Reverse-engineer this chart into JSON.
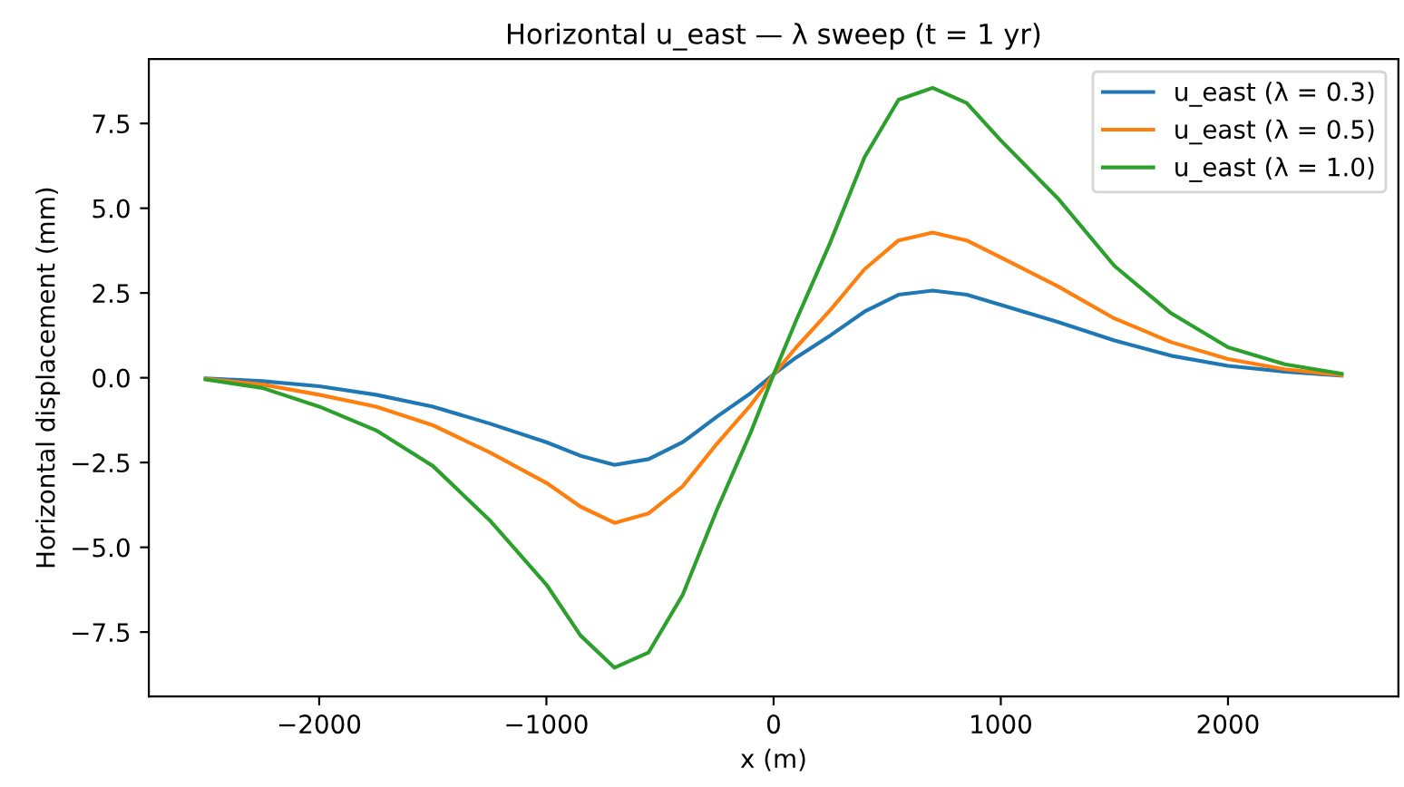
{
  "chart_data": {
    "type": "line",
    "title": "Horizontal u_east — λ sweep (t = 1 yr)",
    "xlabel": "x (m)",
    "ylabel": "Horizontal displacement (mm)",
    "x": [
      -2500,
      -2250,
      -2000,
      -1750,
      -1500,
      -1250,
      -1000,
      -850,
      -700,
      -550,
      -400,
      -250,
      -100,
      0,
      100,
      250,
      400,
      550,
      700,
      850,
      1000,
      1250,
      1500,
      1750,
      2000,
      2250,
      2500
    ],
    "series": [
      {
        "name": "u_east (λ = 0.3)",
        "color": "#1f77b4",
        "values": [
          -0.02,
          -0.1,
          -0.25,
          -0.5,
          -0.85,
          -1.35,
          -1.9,
          -2.3,
          -2.57,
          -2.4,
          -1.9,
          -1.15,
          -0.45,
          0.1,
          0.6,
          1.25,
          1.95,
          2.45,
          2.57,
          2.45,
          2.15,
          1.65,
          1.1,
          0.65,
          0.35,
          0.18,
          0.06
        ]
      },
      {
        "name": "u_east (λ = 0.5)",
        "color": "#ff7f0e",
        "values": [
          -0.03,
          -0.2,
          -0.5,
          -0.85,
          -1.4,
          -2.2,
          -3.1,
          -3.8,
          -4.28,
          -4.0,
          -3.2,
          -1.95,
          -0.8,
          0.1,
          0.9,
          2.0,
          3.2,
          4.05,
          4.28,
          4.05,
          3.55,
          2.7,
          1.75,
          1.05,
          0.55,
          0.25,
          0.08
        ]
      },
      {
        "name": "u_east (λ = 1.0)",
        "color": "#2ca02c",
        "values": [
          -0.05,
          -0.3,
          -0.85,
          -1.55,
          -2.6,
          -4.2,
          -6.1,
          -7.6,
          -8.55,
          -8.1,
          -6.4,
          -3.9,
          -1.6,
          0.1,
          1.7,
          4.0,
          6.5,
          8.2,
          8.55,
          8.1,
          7.0,
          5.3,
          3.3,
          1.9,
          0.9,
          0.4,
          0.12
        ]
      }
    ],
    "xlim": [
      -2750,
      2750
    ],
    "xticks": [
      {
        "value": -2000,
        "label": "−2000"
      },
      {
        "value": -1000,
        "label": "−1000"
      },
      0,
      1000,
      2000
    ],
    "ylim": [
      -9.4,
      9.4
    ],
    "yticks": [
      {
        "value": -7.5,
        "label": "−7.5"
      },
      {
        "value": -5.0,
        "label": "−5.0"
      },
      {
        "value": -2.5,
        "label": "−2.5"
      },
      {
        "value": 0.0,
        "label": "0.0"
      },
      {
        "value": 2.5,
        "label": "2.5"
      },
      {
        "value": 5.0,
        "label": "5.0"
      },
      {
        "value": 7.5,
        "label": "7.5"
      }
    ],
    "grid": false,
    "legend": "top right"
  }
}
